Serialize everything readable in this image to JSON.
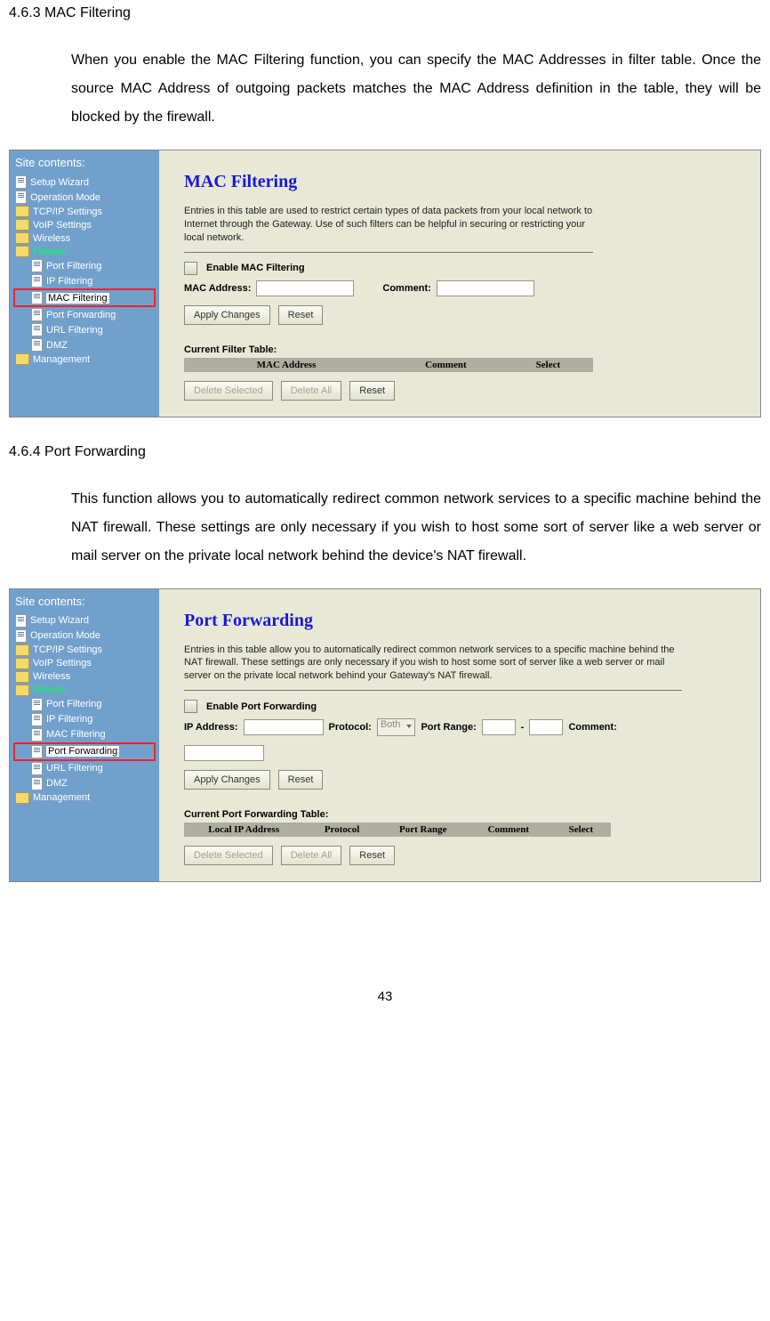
{
  "sections": {
    "mac": {
      "heading": "4.6.3 MAC Filtering",
      "body": "When you enable the MAC Filtering function, you can specify the MAC Addresses in filter table. Once the source MAC Address of outgoing packets matches the MAC Address definition in the table, they will be blocked by the firewall."
    },
    "pf": {
      "heading": "4.6.4 Port Forwarding",
      "body": "This function allows you to automatically redirect common network services to a specific machine behind the NAT firewall. These settings are only necessary if you wish to host some sort of server like a web server or mail server on the private local network behind the device's NAT firewall."
    }
  },
  "sidebar": {
    "title": "Site contents:",
    "items": [
      {
        "type": "doc",
        "label": "Setup Wizard",
        "indent": false
      },
      {
        "type": "doc",
        "label": "Operation Mode",
        "indent": false
      },
      {
        "type": "folder",
        "label": "TCP/IP Settings",
        "indent": false
      },
      {
        "type": "folder",
        "label": "VoIP Settings",
        "indent": false
      },
      {
        "type": "folder",
        "label": "Wireless",
        "indent": false
      },
      {
        "type": "folder",
        "label": "Firewall",
        "indent": false,
        "active": true
      },
      {
        "type": "doc",
        "label": "Port Filtering",
        "indent": true
      },
      {
        "type": "doc",
        "label": "IP Filtering",
        "indent": true
      },
      {
        "type": "doc",
        "label": "MAC Filtering",
        "indent": true,
        "key": "mac"
      },
      {
        "type": "doc",
        "label": "Port Forwarding",
        "indent": true,
        "key": "pf"
      },
      {
        "type": "doc",
        "label": "URL Filtering",
        "indent": true
      },
      {
        "type": "doc",
        "label": "DMZ",
        "indent": true
      },
      {
        "type": "folder",
        "label": "Management",
        "indent": false
      }
    ]
  },
  "mac_panel": {
    "title": "MAC Filtering",
    "desc": "Entries in this table are used to restrict certain types of data packets from your local network to Internet through the Gateway. Use of such filters can be helpful in securing or restricting your local network.",
    "enable": "Enable MAC Filtering",
    "mac_label": "MAC Address:",
    "comment_label": "Comment:",
    "apply": "Apply Changes",
    "reset": "Reset",
    "table_title": "Current Filter Table:",
    "cols": [
      "MAC Address",
      "Comment",
      "Select"
    ],
    "del_sel": "Delete Selected",
    "del_all": "Delete All",
    "reset2": "Reset"
  },
  "pf_panel": {
    "title": "Port Forwarding",
    "desc": "Entries in this table allow you to automatically redirect common network services to a specific machine behind the NAT firewall. These settings are only necessary if you wish to host some sort of server like a web server or mail server on the private local network behind your Gateway's NAT firewall.",
    "enable": "Enable Port Forwarding",
    "ip_label": "IP Address:",
    "proto_label": "Protocol:",
    "proto_val": "Both",
    "range_label": "Port Range:",
    "dash": "-",
    "comment_label": "Comment:",
    "apply": "Apply Changes",
    "reset": "Reset",
    "table_title": "Current Port Forwarding Table:",
    "cols": [
      "Local IP Address",
      "Protocol",
      "Port Range",
      "Comment",
      "Select"
    ],
    "del_sel": "Delete Selected",
    "del_all": "Delete All",
    "reset2": "Reset"
  },
  "page_number": "43"
}
